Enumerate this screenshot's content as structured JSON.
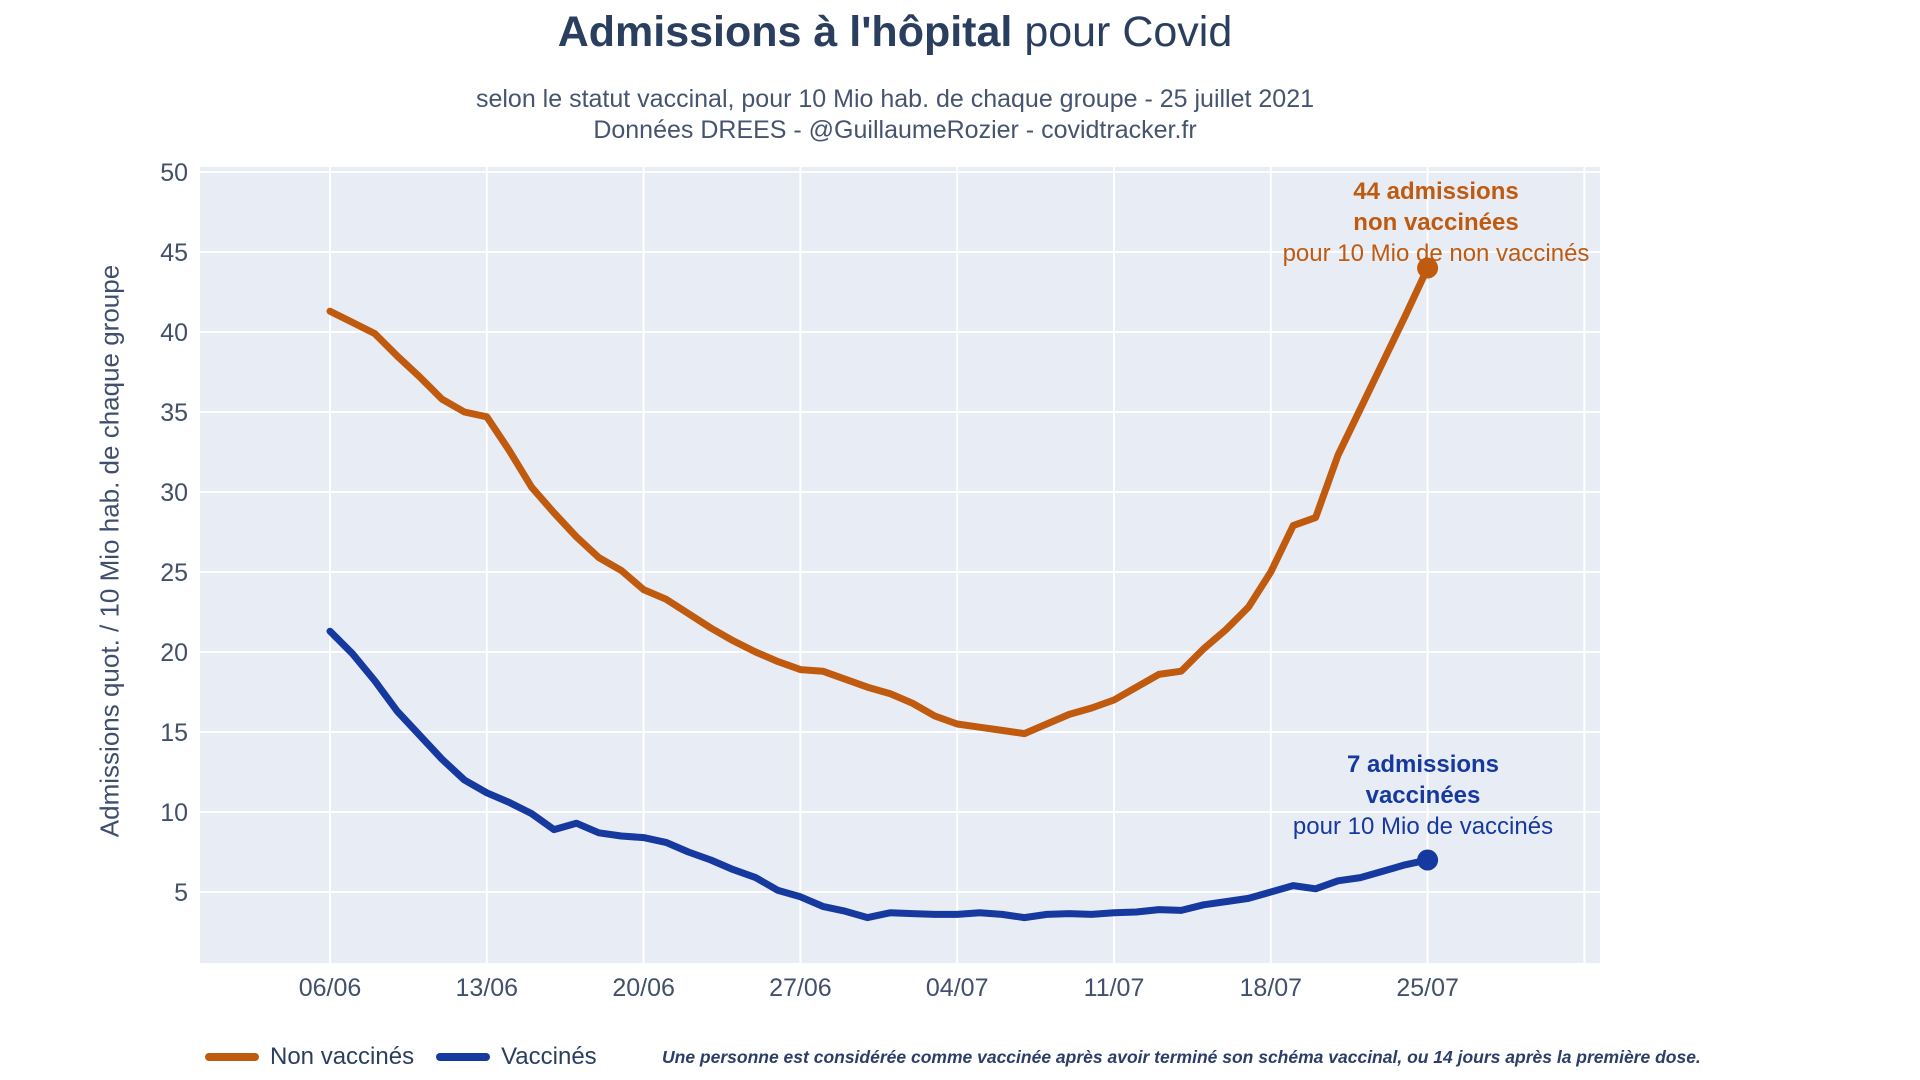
{
  "header": {
    "title_bold": "Admissions à l'hôpital",
    "title_regular": " pour Covid",
    "subtitle_line1": "selon le statut vaccinal, pour 10 Mio hab. de chaque groupe - 25 juillet 2021",
    "subtitle_line2": "Données DREES - @GuillaumeRozier - covidtracker.fr"
  },
  "annotations": {
    "non_vaccinated": {
      "line1": "44 admissions",
      "line2": "non vaccinées",
      "line3": "pour 10 Mio de non vaccinés",
      "color": "#bf5a0f"
    },
    "vaccinated": {
      "line1": "7 admissions",
      "line2": "vaccinées",
      "line3": "pour 10 Mio de vaccinés",
      "color": "#16399f"
    }
  },
  "legend": {
    "items": [
      {
        "label": "Non vaccinés",
        "color": "#bf5a0f"
      },
      {
        "label": "Vaccinés",
        "color": "#16399f"
      }
    ]
  },
  "footnote": "Une personne est considérée comme vaccinée après avoir terminé son schéma vaccinal, ou 14 jours après la première dose.",
  "chart_data": {
    "type": "line",
    "title": "Admissions à l'hôpital pour Covid",
    "ylabel": "Admissions quot. / 10 Mio hab. de chaque groupe",
    "xlabel": "",
    "ylim": [
      0.6,
      50.3
    ],
    "grid": true,
    "panel_color": "#e8ecf4",
    "grid_color": "#ffffff",
    "tick_color": "#42506b",
    "y_ticks": [
      5,
      10,
      15,
      20,
      25,
      30,
      35,
      40,
      45,
      50
    ],
    "x_tick_labels": [
      "06/06",
      "13/06",
      "20/06",
      "27/06",
      "04/07",
      "11/07",
      "18/07",
      "25/07"
    ],
    "x_labels": [
      "06/06",
      "07/06",
      "08/06",
      "09/06",
      "10/06",
      "11/06",
      "12/06",
      "13/06",
      "14/06",
      "15/06",
      "16/06",
      "17/06",
      "18/06",
      "19/06",
      "20/06",
      "21/06",
      "22/06",
      "23/06",
      "24/06",
      "25/06",
      "26/06",
      "27/06",
      "28/06",
      "29/06",
      "30/06",
      "01/07",
      "02/07",
      "03/07",
      "04/07",
      "05/07",
      "06/07",
      "07/07",
      "08/07",
      "09/07",
      "10/07",
      "11/07",
      "12/07",
      "13/07",
      "14/07",
      "15/07",
      "16/07",
      "17/07",
      "18/07",
      "19/07",
      "20/07",
      "21/07",
      "22/07",
      "23/07",
      "24/07",
      "25/07"
    ],
    "series": [
      {
        "name": "Non vaccinés",
        "color": "#bf5a0f",
        "end_dot": true,
        "values": [
          41.3,
          40.6,
          39.9,
          38.5,
          37.2,
          35.8,
          35.0,
          34.7,
          32.6,
          30.3,
          28.7,
          27.2,
          25.9,
          25.1,
          23.9,
          23.3,
          22.4,
          21.5,
          20.7,
          20.0,
          19.4,
          18.9,
          18.8,
          18.3,
          17.8,
          17.4,
          16.8,
          16.0,
          15.5,
          15.3,
          15.1,
          14.9,
          15.5,
          16.1,
          16.5,
          17.0,
          17.8,
          18.6,
          18.8,
          20.2,
          21.4,
          22.8,
          25.0,
          27.9,
          28.4,
          32.3,
          35.2,
          38.1,
          41.0,
          44.0
        ]
      },
      {
        "name": "Vaccinés",
        "color": "#16399f",
        "end_dot": true,
        "values": [
          21.3,
          19.9,
          18.2,
          16.3,
          14.8,
          13.3,
          12.0,
          11.2,
          10.6,
          9.9,
          8.9,
          9.3,
          8.7,
          8.5,
          8.4,
          8.1,
          7.5,
          7.0,
          6.4,
          5.9,
          5.1,
          4.7,
          4.1,
          3.8,
          3.4,
          3.7,
          3.65,
          3.6,
          3.6,
          3.7,
          3.6,
          3.4,
          3.6,
          3.65,
          3.6,
          3.7,
          3.75,
          3.9,
          3.85,
          4.2,
          4.4,
          4.6,
          5.0,
          5.4,
          5.2,
          5.7,
          5.9,
          6.3,
          6.7,
          7.0
        ]
      }
    ]
  }
}
